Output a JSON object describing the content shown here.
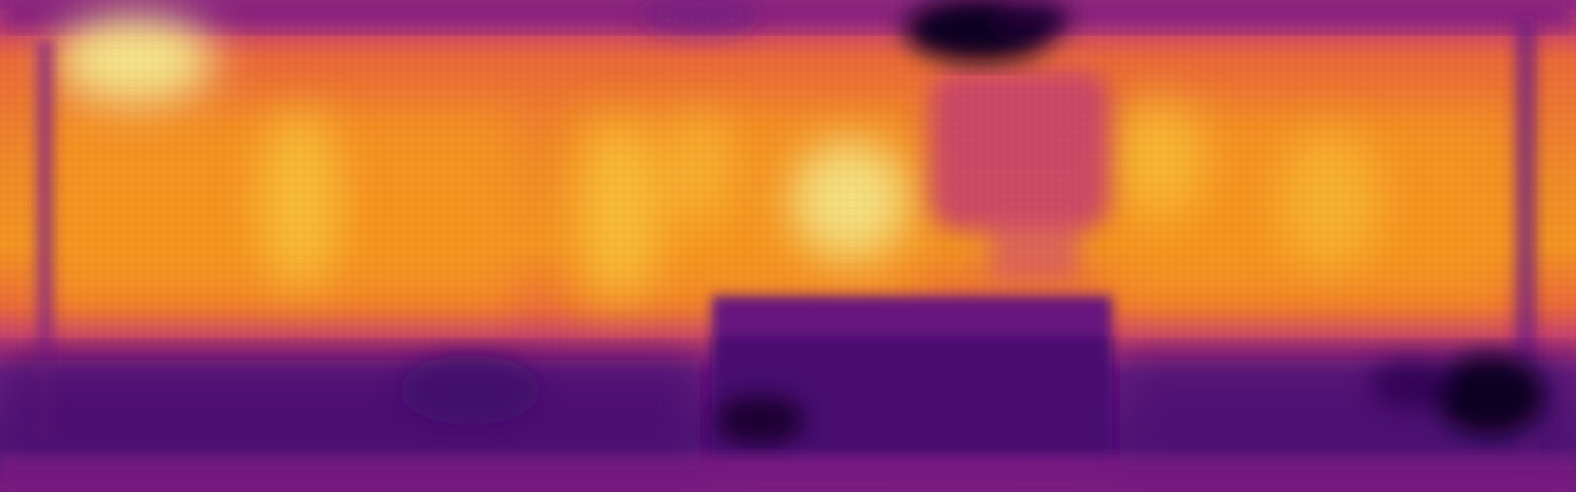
{
  "image": {
    "kind": "depth-heatmap",
    "colormap": "inferno",
    "palette": {
      "darkest": "#0d0420",
      "deep_purple": "#3d0b6b",
      "purple": "#5a1580",
      "magenta": "#9a2c80",
      "rose": "#c8446b",
      "orange": "#ea6a3a",
      "amber": "#f7951f",
      "yellow": "#f9c53d",
      "pale_yellow": "#f4ec8e"
    }
  }
}
